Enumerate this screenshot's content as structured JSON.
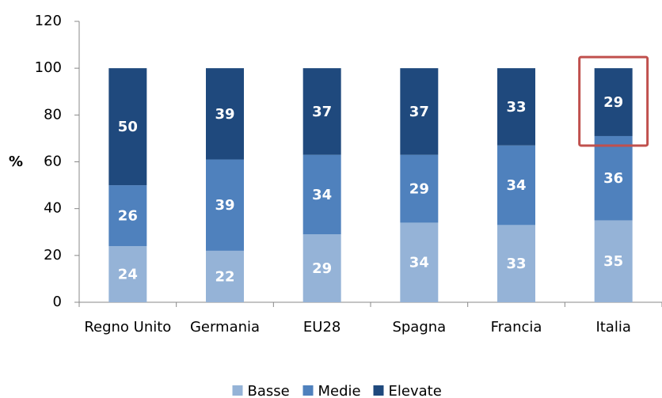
{
  "chart_data": {
    "type": "stacked_bar",
    "y_label": "%",
    "categories": [
      "Regno Unito",
      "Germania",
      "EU28",
      "Spagna",
      "Francia",
      "Italia"
    ],
    "series": [
      {
        "name": "Basse",
        "color": "#95b3d7",
        "values": [
          24,
          22,
          29,
          34,
          33,
          35
        ]
      },
      {
        "name": "Medie",
        "color": "#4f81bd",
        "values": [
          26,
          39,
          34,
          29,
          34,
          36
        ]
      },
      {
        "name": "Elevate",
        "color": "#1f497d",
        "values": [
          50,
          39,
          37,
          37,
          33,
          29
        ]
      }
    ],
    "ylim": [
      0,
      120
    ],
    "yticks": [
      0,
      20,
      40,
      60,
      80,
      100,
      120
    ],
    "grid": false
  }
}
